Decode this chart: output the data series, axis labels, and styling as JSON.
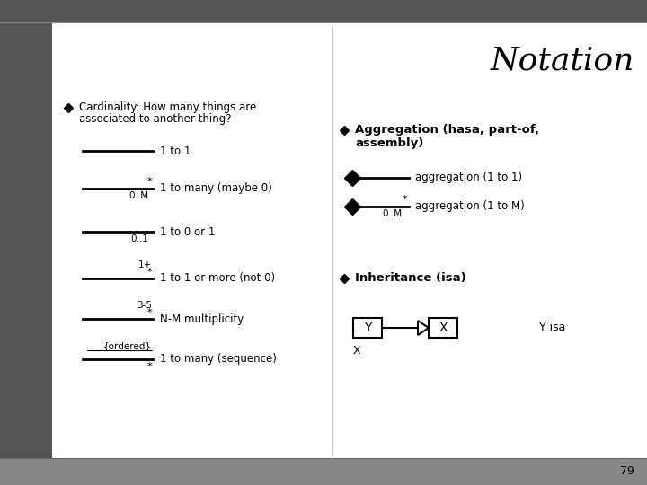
{
  "title": "Notation",
  "page_number": "79",
  "left_header_line1": "Cardinality: How many things are",
  "left_header_line2": "associated to another thing?",
  "card_items": [
    {
      "top": "",
      "bottom": "",
      "label": "1 to 1"
    },
    {
      "top": "*",
      "bottom": "0..M",
      "label": "1 to many (maybe 0)"
    },
    {
      "top": "",
      "bottom": "0..1",
      "label": "1 to 0 or 1"
    },
    {
      "top": "1+\n*",
      "bottom": "",
      "label": "1 to 1 or more (not 0)"
    },
    {
      "top": "3-5\n*",
      "bottom": "",
      "label": "N-M multiplicity"
    },
    {
      "top": "{ordered}",
      "bottom": "",
      "label": "1 to many (sequence)"
    }
  ],
  "agg_header_line1": "Aggregation (hasa, part-of,",
  "agg_header_line2": "assembly)",
  "agg_items": [
    {
      "star": false,
      "label": "aggregation (1 to 1)"
    },
    {
      "star": true,
      "label": "aggregation (1 to M)"
    }
  ],
  "inh_header": "Inheritance (isa)",
  "inh_y": "Y",
  "inh_x": "X",
  "inh_right": "Y isa",
  "inh_below": "X",
  "sidebar_color": "#555555",
  "content_bg": "#ffffff",
  "outer_bg": "#aaaaaa",
  "divider_color": "#888888",
  "title_color": "#000000",
  "text_color": "#000000"
}
